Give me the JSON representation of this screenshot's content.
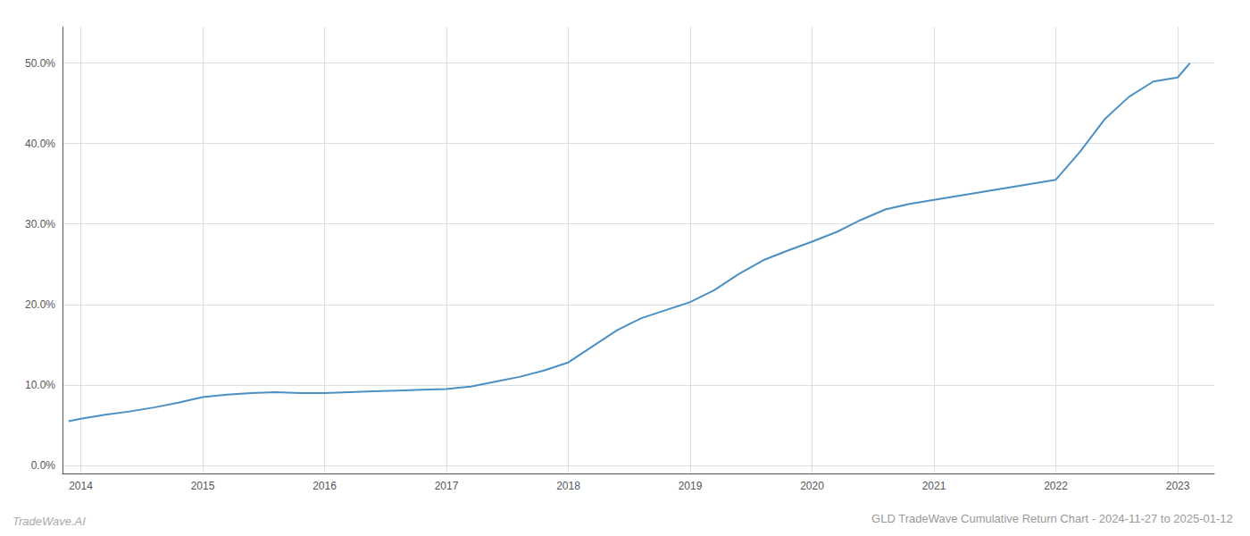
{
  "chart_data": {
    "type": "line",
    "title": "GLD TradeWave Cumulative Return Chart - 2024-11-27 to 2025-01-12",
    "annotations": [
      "TradeWave.AI"
    ],
    "color": "#4a90c4",
    "x": [
      2013.9,
      2014.0,
      2014.2,
      2014.4,
      2014.6,
      2014.8,
      2015.0,
      2015.2,
      2015.4,
      2015.6,
      2015.8,
      2016.0,
      2016.2,
      2016.4,
      2016.6,
      2016.8,
      2017.0,
      2017.2,
      2017.4,
      2017.6,
      2017.8,
      2018.0,
      2018.2,
      2018.4,
      2018.6,
      2018.8,
      2019.0,
      2019.2,
      2019.4,
      2019.6,
      2019.8,
      2020.0,
      2020.2,
      2020.4,
      2020.6,
      2020.8,
      2021.0,
      2021.2,
      2021.4,
      2021.6,
      2021.8,
      2022.0,
      2022.2,
      2022.4,
      2022.6,
      2022.8,
      2023.0,
      2023.1
    ],
    "values": [
      0.055,
      0.058,
      0.063,
      0.067,
      0.072,
      0.078,
      0.085,
      0.088,
      0.09,
      0.091,
      0.09,
      0.09,
      0.091,
      0.092,
      0.093,
      0.094,
      0.095,
      0.098,
      0.104,
      0.11,
      0.118,
      0.128,
      0.148,
      0.168,
      0.183,
      0.193,
      0.203,
      0.218,
      0.238,
      0.255,
      0.267,
      0.278,
      0.29,
      0.305,
      0.318,
      0.325,
      0.33,
      0.335,
      0.34,
      0.345,
      0.35,
      0.355,
      0.39,
      0.43,
      0.458,
      0.477,
      0.482,
      0.5
    ],
    "xlim": [
      2013.85,
      2023.3
    ],
    "ylim": [
      -0.01,
      0.545
    ],
    "xticks": [
      2014,
      2015,
      2016,
      2017,
      2018,
      2019,
      2020,
      2021,
      2022,
      2023
    ],
    "yticks": [
      {
        "value": 0.0,
        "label": "0.0%"
      },
      {
        "value": 0.1,
        "label": "10.0%"
      },
      {
        "value": 0.2,
        "label": "20.0%"
      },
      {
        "value": 0.3,
        "label": "30.0%"
      },
      {
        "value": 0.4,
        "label": "40.0%"
      },
      {
        "value": 0.5,
        "label": "50.0%"
      }
    ],
    "grid": true
  }
}
